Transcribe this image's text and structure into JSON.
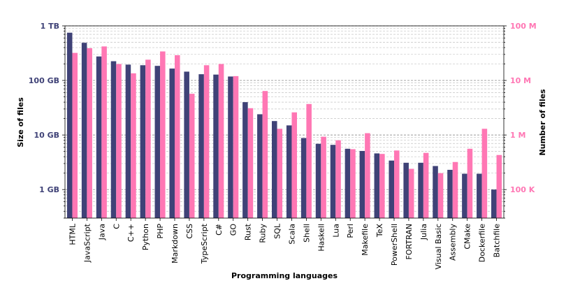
{
  "chart_data": {
    "type": "bar",
    "xlabel": "Programming languages",
    "ylabel_left": "Size of files",
    "ylabel_right": "Number of files",
    "y_left_scale": "log",
    "y_right_scale": "log",
    "y_left_ticks": [
      {
        "value": 1,
        "label": "1 GB"
      },
      {
        "value": 10,
        "label": "10 GB"
      },
      {
        "value": 100,
        "label": "100 GB"
      },
      {
        "value": 1000,
        "label": "1 TB"
      }
    ],
    "y_right_ticks": [
      {
        "value": 100000,
        "label": "100 K"
      },
      {
        "value": 1000000,
        "label": "1 M"
      },
      {
        "value": 10000000,
        "label": "10 M"
      },
      {
        "value": 100000000,
        "label": "100 M"
      }
    ],
    "ylim_left": [
      0.3,
      1000
    ],
    "ylim_right": [
      30000,
      100000000
    ],
    "grid": true,
    "colors": {
      "size": "#3f4277",
      "count": "#ff77b4",
      "axis_left": "#3f4277",
      "axis_right": "#ff77b4"
    },
    "categories": [
      "HTML",
      "JavaScript",
      "Java",
      "C",
      "C++",
      "Python",
      "PHP",
      "Markdown",
      "CSS",
      "TypeScript",
      "C#",
      "GO",
      "Rust",
      "Ruby",
      "SQL",
      "Scala",
      "Shell",
      "Haskell",
      "Lua",
      "Perl",
      "Makefile",
      "TeX",
      "PowerShell",
      "FORTRAN",
      "Julia",
      "Visual Basic",
      "Assembly",
      "CMake",
      "Dockerfile",
      "Batchfile"
    ],
    "series": [
      {
        "key": "size",
        "axis": "left",
        "values": [
          750,
          490,
          275,
          225,
          195,
          190,
          185,
          165,
          145,
          130,
          128,
          118,
          40,
          24,
          18,
          15,
          8.8,
          6.9,
          6.6,
          5.6,
          5.1,
          4.6,
          3.4,
          3.1,
          3.1,
          2.7,
          2.3,
          1.95,
          1.95,
          1.0
        ]
      },
      {
        "key": "count",
        "axis": "right",
        "values": [
          32000000,
          39000000,
          42000000,
          20000000,
          13500000,
          24000000,
          34000000,
          29000000,
          5700000,
          19000000,
          20000000,
          12000000,
          3100000,
          6400000,
          1300000,
          2600000,
          3700000,
          930000,
          800000,
          550000,
          1080000,
          450000,
          520000,
          240000,
          470000,
          200000,
          320000,
          560000,
          1300000,
          430000
        ]
      }
    ]
  }
}
